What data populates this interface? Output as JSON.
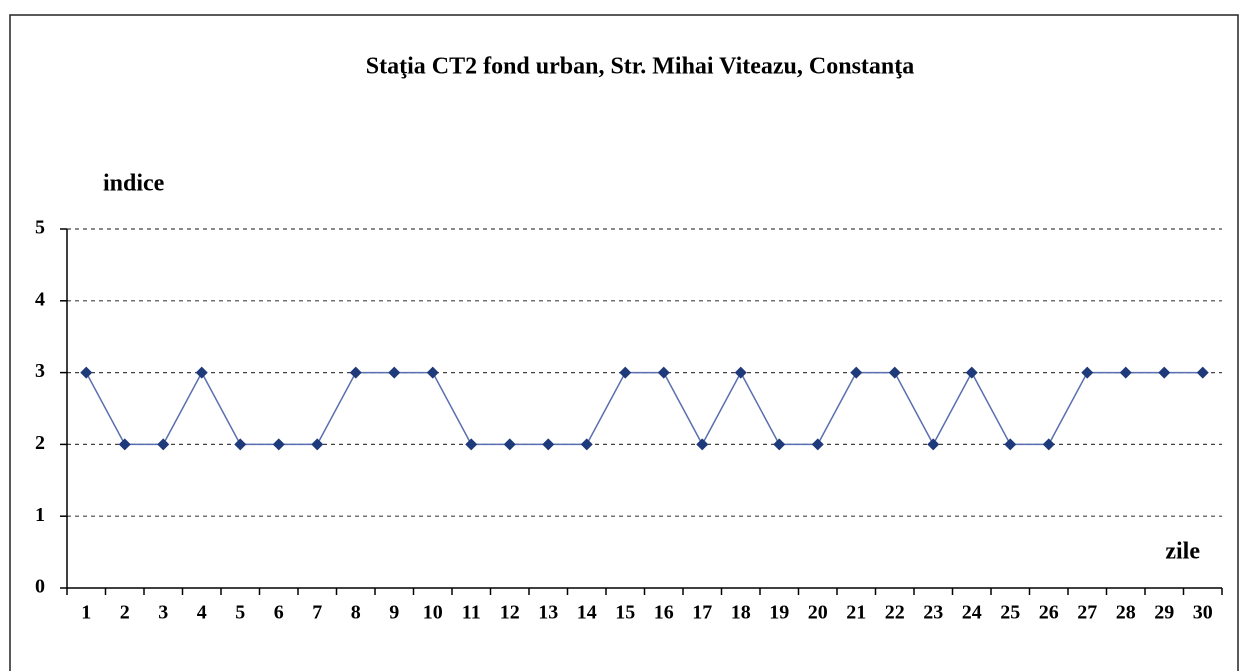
{
  "chart_data": {
    "type": "line",
    "title": "Staţia CT2 fond urban, Str. Mihai Viteazu, Constanţa",
    "ylabel": "indice",
    "xlabel": "zile",
    "categories": [
      "1",
      "2",
      "3",
      "4",
      "5",
      "6",
      "7",
      "8",
      "9",
      "10",
      "11",
      "12",
      "13",
      "14",
      "15",
      "16",
      "17",
      "18",
      "19",
      "20",
      "21",
      "22",
      "23",
      "24",
      "25",
      "26",
      "27",
      "28",
      "29",
      "30"
    ],
    "values": [
      3,
      2,
      2,
      3,
      2,
      2,
      2,
      3,
      3,
      3,
      2,
      2,
      2,
      2,
      3,
      3,
      2,
      3,
      2,
      2,
      3,
      3,
      2,
      3,
      2,
      2,
      3,
      3,
      3,
      3
    ],
    "color": "#5a6fb0",
    "marker_color": "#1f3a7a",
    "ylim": [
      0,
      5
    ],
    "yticks": [
      0,
      1,
      2,
      3,
      4,
      5
    ],
    "grid": true
  }
}
